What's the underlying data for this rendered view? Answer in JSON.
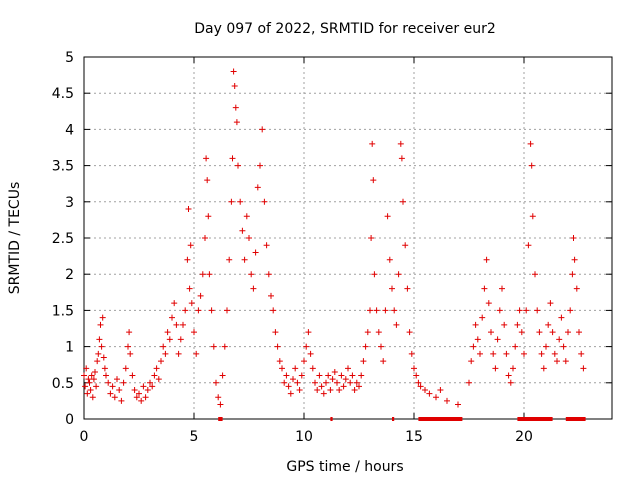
{
  "chart_data": {
    "type": "scatter",
    "title": "Day 097 of 2022, SRMTID for receiver eur2",
    "xlabel": "GPS time / hours",
    "ylabel": "SRMTID / TECUs",
    "xlim": [
      0,
      24
    ],
    "ylim": [
      0,
      5
    ],
    "xticks": [
      0,
      5,
      10,
      15,
      20
    ],
    "yticks": [
      0,
      0.5,
      1,
      1.5,
      2,
      2.5,
      3,
      3.5,
      4,
      4.5,
      5
    ],
    "xtick_labels": [
      "0",
      "5",
      "10",
      "15",
      "20"
    ],
    "ytick_labels": [
      "0",
      "0.5",
      "1",
      "1.5",
      "2",
      "2.5",
      "3",
      "3.5",
      "4",
      "4.5",
      "5"
    ],
    "grid": true,
    "legend": "none",
    "marker": "+",
    "colors": {
      "series": "#e00000",
      "grid": "#a0a0a0",
      "axis": "#000000"
    },
    "series": [
      {
        "name": "SRMTID",
        "points": [
          [
            0.0,
            0.6
          ],
          [
            0.05,
            0.45
          ],
          [
            0.1,
            0.7
          ],
          [
            0.15,
            0.35
          ],
          [
            0.2,
            0.55
          ],
          [
            0.25,
            0.5
          ],
          [
            0.3,
            0.4
          ],
          [
            0.35,
            0.6
          ],
          [
            0.4,
            0.3
          ],
          [
            0.45,
            0.55
          ],
          [
            0.5,
            0.65
          ],
          [
            0.55,
            0.45
          ],
          [
            0.6,
            0.8
          ],
          [
            0.65,
            0.9
          ],
          [
            0.7,
            1.1
          ],
          [
            0.75,
            1.3
          ],
          [
            0.8,
            1.0
          ],
          [
            0.85,
            1.4
          ],
          [
            0.9,
            0.85
          ],
          [
            0.95,
            0.7
          ],
          [
            1.0,
            0.6
          ],
          [
            1.1,
            0.5
          ],
          [
            1.2,
            0.35
          ],
          [
            1.3,
            0.45
          ],
          [
            1.4,
            0.3
          ],
          [
            1.5,
            0.55
          ],
          [
            1.6,
            0.4
          ],
          [
            1.7,
            0.25
          ],
          [
            1.8,
            0.5
          ],
          [
            1.9,
            0.7
          ],
          [
            2.0,
            1.0
          ],
          [
            2.05,
            1.2
          ],
          [
            2.1,
            0.9
          ],
          [
            2.2,
            0.6
          ],
          [
            2.3,
            0.4
          ],
          [
            2.4,
            0.3
          ],
          [
            2.5,
            0.35
          ],
          [
            2.6,
            0.25
          ],
          [
            2.7,
            0.45
          ],
          [
            2.8,
            0.3
          ],
          [
            2.9,
            0.4
          ],
          [
            3.0,
            0.5
          ],
          [
            3.1,
            0.45
          ],
          [
            3.2,
            0.6
          ],
          [
            3.3,
            0.7
          ],
          [
            3.4,
            0.55
          ],
          [
            3.5,
            0.8
          ],
          [
            3.6,
            1.0
          ],
          [
            3.7,
            0.9
          ],
          [
            3.8,
            1.2
          ],
          [
            3.9,
            1.1
          ],
          [
            4.0,
            1.4
          ],
          [
            4.1,
            1.6
          ],
          [
            4.2,
            1.3
          ],
          [
            4.3,
            0.9
          ],
          [
            4.4,
            1.1
          ],
          [
            4.5,
            1.3
          ],
          [
            4.6,
            1.5
          ],
          [
            4.7,
            2.2
          ],
          [
            4.75,
            2.9
          ],
          [
            4.8,
            1.8
          ],
          [
            4.85,
            2.4
          ],
          [
            4.9,
            1.6
          ],
          [
            5.0,
            1.2
          ],
          [
            5.1,
            0.9
          ],
          [
            5.2,
            1.5
          ],
          [
            5.3,
            1.7
          ],
          [
            5.4,
            2.0
          ],
          [
            5.5,
            2.5
          ],
          [
            5.55,
            3.6
          ],
          [
            5.6,
            3.3
          ],
          [
            5.65,
            2.8
          ],
          [
            5.7,
            2.0
          ],
          [
            5.8,
            1.5
          ],
          [
            5.9,
            1.0
          ],
          [
            6.0,
            0.5
          ],
          [
            6.1,
            0.3
          ],
          [
            6.2,
            0.2
          ],
          [
            6.3,
            0.6
          ],
          [
            6.4,
            1.0
          ],
          [
            6.5,
            1.5
          ],
          [
            6.6,
            2.2
          ],
          [
            6.7,
            3.0
          ],
          [
            6.75,
            3.6
          ],
          [
            6.8,
            4.8
          ],
          [
            6.85,
            4.6
          ],
          [
            6.9,
            4.3
          ],
          [
            6.95,
            4.1
          ],
          [
            7.0,
            3.5
          ],
          [
            7.1,
            3.0
          ],
          [
            7.2,
            2.6
          ],
          [
            7.3,
            2.2
          ],
          [
            7.4,
            2.8
          ],
          [
            7.5,
            2.5
          ],
          [
            7.6,
            2.0
          ],
          [
            7.7,
            1.8
          ],
          [
            7.8,
            2.3
          ],
          [
            7.9,
            3.2
          ],
          [
            8.0,
            3.5
          ],
          [
            8.1,
            4.0
          ],
          [
            8.2,
            3.0
          ],
          [
            8.3,
            2.4
          ],
          [
            8.4,
            2.0
          ],
          [
            8.5,
            1.7
          ],
          [
            8.6,
            1.5
          ],
          [
            8.7,
            1.2
          ],
          [
            8.8,
            1.0
          ],
          [
            8.9,
            0.8
          ],
          [
            9.0,
            0.7
          ],
          [
            9.1,
            0.5
          ],
          [
            9.2,
            0.6
          ],
          [
            9.3,
            0.45
          ],
          [
            9.4,
            0.35
          ],
          [
            9.5,
            0.55
          ],
          [
            9.6,
            0.7
          ],
          [
            9.7,
            0.5
          ],
          [
            9.8,
            0.4
          ],
          [
            9.9,
            0.6
          ],
          [
            10.0,
            0.8
          ],
          [
            10.1,
            1.0
          ],
          [
            10.2,
            1.2
          ],
          [
            10.3,
            0.9
          ],
          [
            10.4,
            0.7
          ],
          [
            10.5,
            0.5
          ],
          [
            10.6,
            0.4
          ],
          [
            10.7,
            0.6
          ],
          [
            10.8,
            0.45
          ],
          [
            10.9,
            0.35
          ],
          [
            11.0,
            0.5
          ],
          [
            11.1,
            0.6
          ],
          [
            11.2,
            0.4
          ],
          [
            11.3,
            0.55
          ],
          [
            11.4,
            0.65
          ],
          [
            11.5,
            0.5
          ],
          [
            11.6,
            0.4
          ],
          [
            11.7,
            0.6
          ],
          [
            11.8,
            0.45
          ],
          [
            11.9,
            0.55
          ],
          [
            12.0,
            0.7
          ],
          [
            12.1,
            0.5
          ],
          [
            12.2,
            0.6
          ],
          [
            12.3,
            0.4
          ],
          [
            12.4,
            0.5
          ],
          [
            12.5,
            0.45
          ],
          [
            12.6,
            0.6
          ],
          [
            12.7,
            0.8
          ],
          [
            12.8,
            1.0
          ],
          [
            12.9,
            1.2
          ],
          [
            13.0,
            1.5
          ],
          [
            13.05,
            2.5
          ],
          [
            13.1,
            3.8
          ],
          [
            13.15,
            3.3
          ],
          [
            13.2,
            2.0
          ],
          [
            13.3,
            1.5
          ],
          [
            13.4,
            1.2
          ],
          [
            13.5,
            1.0
          ],
          [
            13.6,
            0.8
          ],
          [
            13.7,
            1.5
          ],
          [
            13.8,
            2.8
          ],
          [
            13.9,
            2.2
          ],
          [
            14.0,
            1.8
          ],
          [
            14.1,
            1.5
          ],
          [
            14.2,
            1.3
          ],
          [
            14.3,
            2.0
          ],
          [
            14.4,
            3.8
          ],
          [
            14.45,
            3.6
          ],
          [
            14.5,
            3.0
          ],
          [
            14.6,
            2.4
          ],
          [
            14.7,
            1.8
          ],
          [
            14.8,
            1.2
          ],
          [
            14.9,
            0.9
          ],
          [
            15.0,
            0.7
          ],
          [
            15.1,
            0.6
          ],
          [
            15.2,
            0.5
          ],
          [
            15.3,
            0.45
          ],
          [
            15.5,
            0.4
          ],
          [
            15.7,
            0.35
          ],
          [
            16.0,
            0.3
          ],
          [
            16.2,
            0.4
          ],
          [
            16.5,
            0.25
          ],
          [
            17.0,
            0.2
          ],
          [
            17.5,
            0.5
          ],
          [
            17.6,
            0.8
          ],
          [
            17.7,
            1.0
          ],
          [
            17.8,
            1.3
          ],
          [
            17.9,
            1.1
          ],
          [
            18.0,
            0.9
          ],
          [
            18.1,
            1.4
          ],
          [
            18.2,
            1.8
          ],
          [
            18.3,
            2.2
          ],
          [
            18.4,
            1.6
          ],
          [
            18.5,
            1.2
          ],
          [
            18.6,
            0.9
          ],
          [
            18.7,
            0.7
          ],
          [
            18.8,
            1.1
          ],
          [
            18.9,
            1.5
          ],
          [
            19.0,
            1.8
          ],
          [
            19.1,
            1.3
          ],
          [
            19.2,
            0.9
          ],
          [
            19.3,
            0.6
          ],
          [
            19.4,
            0.5
          ],
          [
            19.5,
            0.7
          ],
          [
            19.6,
            1.0
          ],
          [
            19.7,
            1.3
          ],
          [
            19.8,
            1.5
          ],
          [
            19.9,
            1.2
          ],
          [
            20.0,
            0.9
          ],
          [
            20.1,
            1.5
          ],
          [
            20.2,
            2.4
          ],
          [
            20.3,
            3.8
          ],
          [
            20.35,
            3.5
          ],
          [
            20.4,
            2.8
          ],
          [
            20.5,
            2.0
          ],
          [
            20.6,
            1.5
          ],
          [
            20.7,
            1.2
          ],
          [
            20.8,
            0.9
          ],
          [
            20.9,
            0.7
          ],
          [
            21.0,
            1.0
          ],
          [
            21.1,
            1.3
          ],
          [
            21.2,
            1.6
          ],
          [
            21.3,
            1.2
          ],
          [
            21.4,
            0.9
          ],
          [
            21.5,
            0.8
          ],
          [
            21.6,
            1.1
          ],
          [
            21.7,
            1.4
          ],
          [
            21.8,
            1.0
          ],
          [
            21.9,
            0.8
          ],
          [
            22.0,
            1.2
          ],
          [
            22.1,
            1.5
          ],
          [
            22.2,
            2.0
          ],
          [
            22.25,
            2.5
          ],
          [
            22.3,
            2.2
          ],
          [
            22.4,
            1.8
          ],
          [
            22.5,
            1.2
          ],
          [
            22.6,
            0.9
          ],
          [
            22.7,
            0.7
          ]
        ]
      }
    ]
  }
}
